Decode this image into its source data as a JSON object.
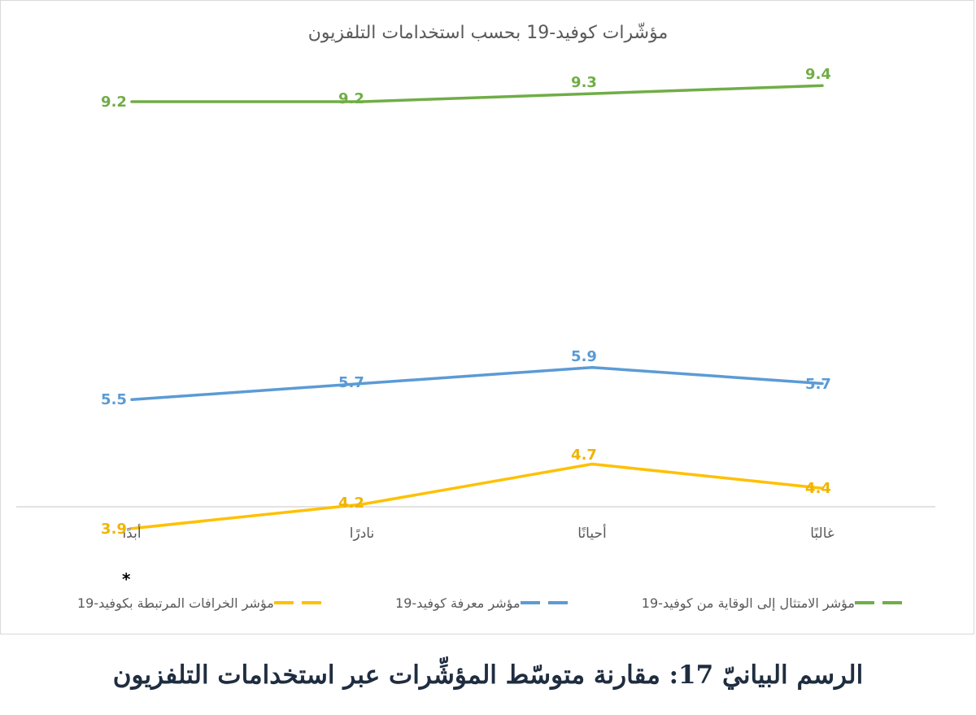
{
  "chart_data": {
    "type": "line",
    "title": "مؤشّرات كوفيد-19 بحسب استخدامات التلفزيون",
    "categories": [
      "أبدًا",
      "نادرًا",
      "أحيانًا",
      "غالبًا"
    ],
    "series": [
      {
        "name": "مؤشر الامتثال إلى الوقاية من كوفيد-19",
        "values": [
          9.2,
          9.2,
          9.3,
          9.4
        ],
        "color": "#70ad47"
      },
      {
        "name": "مؤشر معرفة كوفيد-19",
        "values": [
          5.5,
          5.7,
          5.9,
          5.7
        ],
        "color": "#5b9bd5"
      },
      {
        "name": "مؤشر الخرافات المرتبطة بكوفيد-19",
        "values": [
          3.9,
          4.2,
          4.7,
          4.4
        ],
        "color": "#ffc000"
      }
    ],
    "xlabel": "",
    "ylabel": "",
    "legend_position": "bottom",
    "grid": false,
    "data_labels": true,
    "line_colors_hex": {
      "green": "#70ad47",
      "blue": "#5b9bd5",
      "yellow": "#f4c542"
    }
  },
  "asterisk": "*",
  "caption": "الرسم البيانيّ 17: مقارنة متوسّط المؤشِّرات عبر استخدامات التلفزيون"
}
